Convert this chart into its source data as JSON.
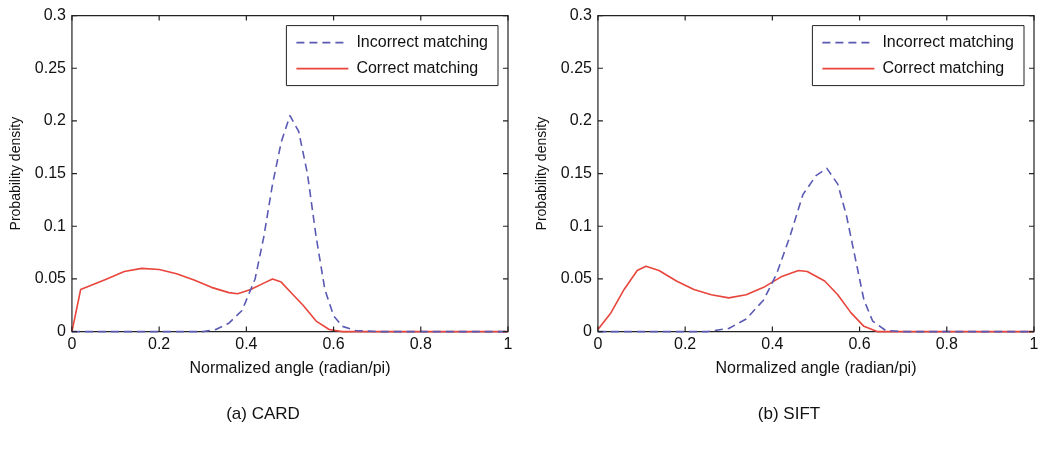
{
  "chart_data": [
    {
      "type": "line",
      "title": "(a) CARD",
      "xlabel": "Normalized angle (radian/pi)",
      "ylabel": "Probability density",
      "xlim": [
        0,
        1
      ],
      "xticks": [
        0,
        0.2,
        0.4,
        0.6,
        0.8,
        1
      ],
      "ylim": [
        0,
        0.3
      ],
      "yticks": [
        0,
        0.05,
        0.1,
        0.15,
        0.2,
        0.25,
        0.3
      ],
      "grid": false,
      "legend": "top right",
      "marker": "none",
      "series": [
        {
          "name": "Incorrect matching",
          "color": "#5a5ab4",
          "line_style": "dashed",
          "x": [
            0,
            0.3,
            0.33,
            0.36,
            0.39,
            0.42,
            0.44,
            0.46,
            0.48,
            0.5,
            0.52,
            0.54,
            0.56,
            0.58,
            0.6,
            0.62,
            0.65,
            0.7,
            1
          ],
          "values": [
            0,
            0,
            0.002,
            0.008,
            0.02,
            0.05,
            0.09,
            0.14,
            0.18,
            0.205,
            0.19,
            0.15,
            0.09,
            0.04,
            0.015,
            0.005,
            0.001,
            0,
            0
          ]
        },
        {
          "name": "Correct matching",
          "color": "#e8453c",
          "line_style": "solid",
          "x": [
            0,
            0.02,
            0.05,
            0.08,
            0.12,
            0.16,
            0.2,
            0.24,
            0.28,
            0.32,
            0.36,
            0.38,
            0.41,
            0.44,
            0.46,
            0.48,
            0.5,
            0.53,
            0.56,
            0.59,
            0.62,
            1
          ],
          "values": [
            0,
            0.04,
            0.045,
            0.05,
            0.057,
            0.06,
            0.059,
            0.055,
            0.049,
            0.042,
            0.037,
            0.036,
            0.04,
            0.046,
            0.05,
            0.047,
            0.038,
            0.025,
            0.01,
            0.002,
            0,
            0
          ]
        }
      ]
    },
    {
      "type": "line",
      "title": "(b) SIFT",
      "xlabel": "Normalized angle (radian/pi)",
      "ylabel": "Probability density",
      "xlim": [
        0,
        1
      ],
      "xticks": [
        0,
        0.2,
        0.4,
        0.6,
        0.8,
        1
      ],
      "ylim": [
        0,
        0.3
      ],
      "yticks": [
        0,
        0.05,
        0.1,
        0.15,
        0.2,
        0.25,
        0.3
      ],
      "grid": false,
      "legend": "top right",
      "marker": "none",
      "series": [
        {
          "name": "Incorrect matching",
          "color": "#5a5ab4",
          "line_style": "dashed",
          "x": [
            0,
            0.25,
            0.3,
            0.34,
            0.38,
            0.41,
            0.44,
            0.47,
            0.5,
            0.525,
            0.55,
            0.57,
            0.59,
            0.61,
            0.63,
            0.66,
            0.7,
            1
          ],
          "values": [
            0,
            0,
            0.003,
            0.012,
            0.03,
            0.055,
            0.09,
            0.13,
            0.148,
            0.155,
            0.14,
            0.11,
            0.07,
            0.03,
            0.01,
            0.001,
            0,
            0
          ]
        },
        {
          "name": "Correct matching",
          "color": "#e8453c",
          "line_style": "solid",
          "x": [
            0,
            0.03,
            0.06,
            0.09,
            0.11,
            0.14,
            0.18,
            0.22,
            0.26,
            0.3,
            0.34,
            0.38,
            0.42,
            0.46,
            0.48,
            0.52,
            0.55,
            0.58,
            0.61,
            0.64,
            1
          ],
          "values": [
            0.002,
            0.018,
            0.04,
            0.058,
            0.062,
            0.058,
            0.048,
            0.04,
            0.035,
            0.032,
            0.035,
            0.042,
            0.052,
            0.058,
            0.057,
            0.048,
            0.035,
            0.018,
            0.005,
            0,
            0
          ]
        }
      ]
    }
  ]
}
